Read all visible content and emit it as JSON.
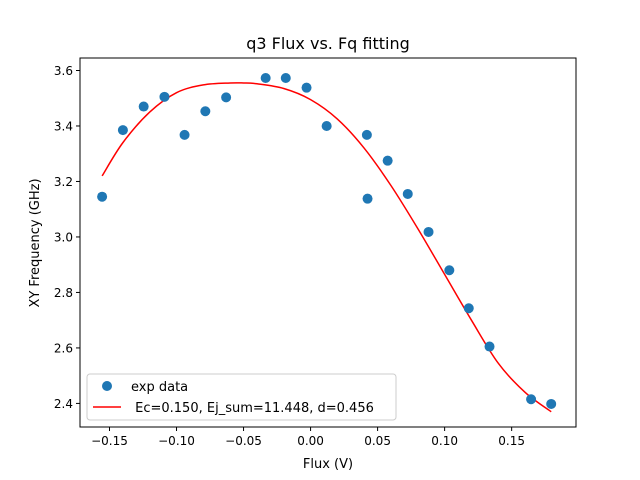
{
  "chart_data": {
    "type": "scatter",
    "title": "q3 Flux vs. Fq fitting",
    "xlabel": "Flux (V)",
    "ylabel": "XY Frequency (GHz)",
    "xlim": [
      -0.172,
      0.198
    ],
    "ylim": [
      2.315,
      3.645
    ],
    "xticks": [
      -0.15,
      -0.1,
      -0.05,
      0.0,
      0.05,
      0.1,
      0.15
    ],
    "xtick_labels": [
      "−0.15",
      "−0.10",
      "−0.05",
      "0.00",
      "0.05",
      "0.10",
      "0.15"
    ],
    "yticks": [
      2.4,
      2.6,
      2.8,
      3.0,
      3.2,
      3.4,
      3.6
    ],
    "ytick_labels": [
      "2.4",
      "2.6",
      "2.8",
      "3.0",
      "3.2",
      "3.4",
      "3.6"
    ],
    "grid": false,
    "legend_position": "lower-left",
    "series": [
      {
        "name": "exp data",
        "kind": "scatter",
        "color": "#1f77b4",
        "x": [
          -0.1555,
          -0.14,
          -0.1245,
          -0.109,
          -0.094,
          -0.0785,
          -0.063,
          -0.0335,
          -0.0185,
          -0.003,
          0.012,
          0.042,
          0.0425,
          0.0575,
          0.0725,
          0.088,
          0.1035,
          0.118,
          0.1335,
          0.1645,
          0.1795
        ],
        "y": [
          3.145,
          3.385,
          3.47,
          3.505,
          3.368,
          3.453,
          3.503,
          3.573,
          3.573,
          3.538,
          3.4,
          3.368,
          3.138,
          3.275,
          3.155,
          3.018,
          2.88,
          2.743,
          2.605,
          2.415,
          2.398
        ]
      },
      {
        "name": " Ec=0.150, Ej_sum=11.448, d=0.456",
        "kind": "line",
        "color": "#ff0000",
        "x": [
          -0.1555,
          -0.14,
          -0.12,
          -0.1,
          -0.08,
          -0.06,
          -0.05,
          -0.04,
          -0.02,
          0.0,
          0.02,
          0.04,
          0.06,
          0.08,
          0.1,
          0.12,
          0.14,
          0.16,
          0.1795
        ],
        "y": [
          3.22,
          3.34,
          3.45,
          3.52,
          3.548,
          3.555,
          3.555,
          3.552,
          3.535,
          3.495,
          3.425,
          3.32,
          3.185,
          3.03,
          2.865,
          2.7,
          2.545,
          2.44,
          2.37
        ]
      }
    ]
  }
}
